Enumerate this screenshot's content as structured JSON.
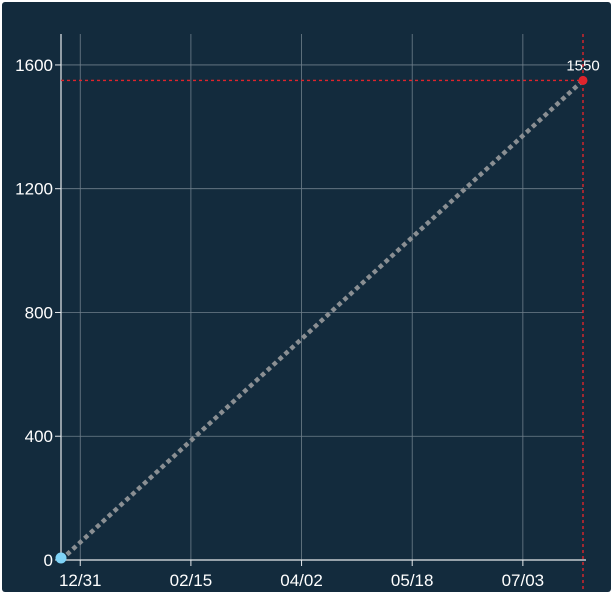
{
  "chart_data": {
    "type": "line",
    "title": "",
    "xlabel": "",
    "ylabel": "",
    "x_ticks": [
      "12/31",
      "02/15",
      "04/02",
      "05/18",
      "07/03"
    ],
    "y_ticks": [
      "0",
      "400",
      "800",
      "1200",
      "1600"
    ],
    "ylim": [
      0,
      1700
    ],
    "xlim": [
      "12/23",
      "07/28"
    ],
    "grid": true,
    "series": [
      {
        "points": [
          {
            "x": "12/23",
            "y": 0
          },
          {
            "x": "07/28",
            "y": 1550
          }
        ],
        "line_style": "dotted",
        "line_color": "#8a8f93"
      }
    ],
    "start_marker_color": "#7fd3f7",
    "end_marker_color": "#e0242c",
    "end_value_label": "1550",
    "reference_lines": {
      "horizontal_value": 1550,
      "vertical_x": "07/28",
      "color": "#e0242c",
      "style": "dotted"
    },
    "colors": {
      "background": "#132b3d",
      "grid": "#6f7f8b",
      "axis": "#e6e9ec",
      "text": "#ffffff"
    }
  }
}
